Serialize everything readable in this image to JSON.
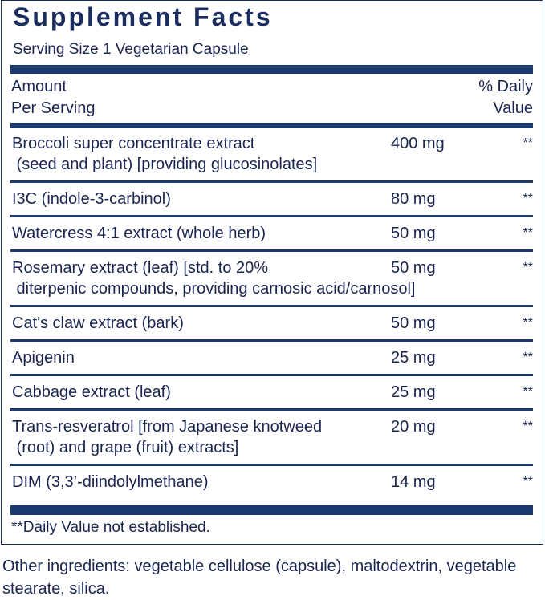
{
  "title": "Supplement Facts",
  "serving_size": "Serving Size 1 Vegetarian Capsule",
  "header": {
    "amount_line1": "Amount",
    "amount_line2": "Per Serving",
    "dv_line1": "% Daily",
    "dv_line2": "Value"
  },
  "ingredients": [
    {
      "name": "Broccoli super concentrate extract",
      "name2": " (seed and plant) [providing glucosinolates]",
      "amount": "400 mg",
      "dv": "**"
    },
    {
      "name": "I3C (indole-3-carbinol)",
      "name2": "",
      "amount": "80 mg",
      "dv": "**"
    },
    {
      "name": "Watercress 4:1 extract (whole herb)",
      "name2": "",
      "amount": "50 mg",
      "dv": "**"
    },
    {
      "name": "Rosemary extract (leaf) [std. to 20%",
      "name2": " diterpenic compounds, providing carnosic acid/carnosol]",
      "amount": "50 mg",
      "dv": "**"
    },
    {
      "name": "Cat's claw extract (bark)",
      "name2": "",
      "amount": "50 mg",
      "dv": "**"
    },
    {
      "name": "Apigenin",
      "name2": "",
      "amount": "25 mg",
      "dv": "**"
    },
    {
      "name": "Cabbage extract (leaf)",
      "name2": "",
      "amount": "25 mg",
      "dv": "**"
    },
    {
      "name": "Trans-resveratrol [from Japanese knotweed",
      "name2": " (root) and grape (fruit) extracts]",
      "amount": "20 mg",
      "dv": "**"
    },
    {
      "name": "DIM (3,3’-diindolylmethane)",
      "name2": "",
      "amount": "14 mg",
      "dv": "**"
    }
  ],
  "footnote": "**Daily Value not established.",
  "other_ingredients": "Other ingredients: vegetable cellulose (capsule), maltodextrin, vegetable stearate, silica.",
  "colors": {
    "text": "#1a2550",
    "bars": "#1b3a70"
  }
}
